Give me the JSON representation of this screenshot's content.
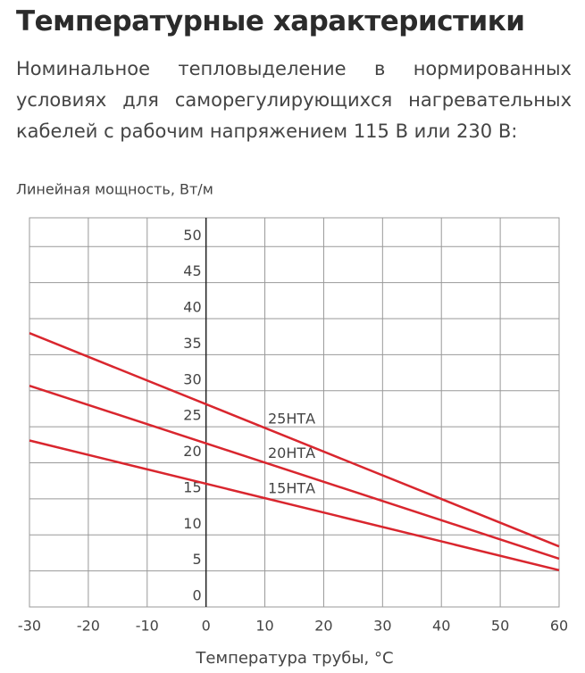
{
  "chart_data": {
    "type": "line",
    "title": "Температурные характеристики",
    "subtitle": "Номинальное тепловыделение в нормированных условиях для саморегулирующихся нагревательных кабелей с рабочим напряжением 115 В или 230 В:",
    "y_label": "Линейная мощность, Вт/м",
    "x_label": "Температура трубы, °C",
    "x": [
      -30,
      60
    ],
    "series": [
      {
        "name": "25НТА",
        "color": "#d9262e",
        "values": [
          38,
          8.4
        ]
      },
      {
        "name": "20НТА",
        "color": "#d9262e",
        "values": [
          30.7,
          6.7
        ]
      },
      {
        "name": "15НТА",
        "color": "#d9262e",
        "values": [
          23.1,
          5.1
        ]
      }
    ],
    "xlim": [
      -30,
      60
    ],
    "xticks": [
      -30,
      -20,
      -10,
      0,
      10,
      20,
      30,
      40,
      50,
      60
    ],
    "ylim": [
      0,
      54
    ],
    "yticks": [
      0,
      5,
      10,
      15,
      20,
      25,
      30,
      35,
      40,
      45,
      50
    ],
    "grid": true
  }
}
